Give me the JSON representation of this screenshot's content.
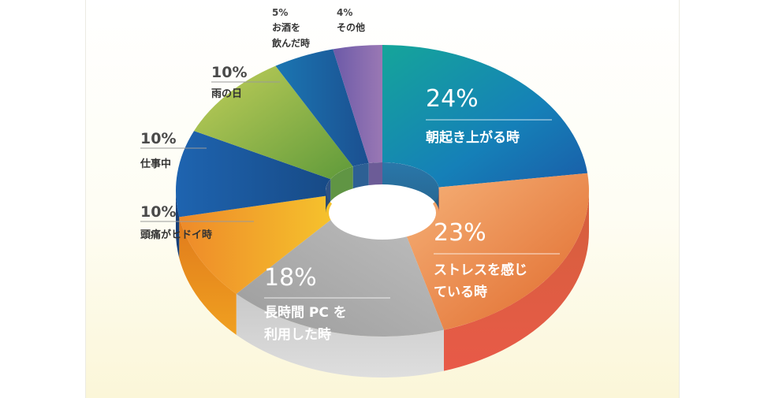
{
  "chart_data": {
    "type": "pie",
    "title": "",
    "slices": [
      {
        "label": "朝起き上がる時",
        "value": 24,
        "percent": "24%",
        "color": "#1583b8"
      },
      {
        "label": "ストレスを感じている時",
        "label_lines": [
          "ストレスを感じ",
          "ている時"
        ],
        "value": 23,
        "percent": "23%",
        "color": "#eb8a4a"
      },
      {
        "label": "長時間 PC を利用した時",
        "label_lines": [
          "長時間 PC を",
          "利用した時"
        ],
        "value": 18,
        "percent": "18%",
        "color": "#b4b4b4"
      },
      {
        "label": "頭痛がヒドイ時",
        "value": 10,
        "percent": "10%",
        "color": "#f2a226"
      },
      {
        "label": "仕事中",
        "value": 10,
        "percent": "10%",
        "color": "#1d5aa0"
      },
      {
        "label": "雨の日",
        "value": 10,
        "percent": "10%",
        "color": "#8fb33a"
      },
      {
        "label": "お酒を飲んだ時",
        "label_lines": [
          "お酒を",
          "飲んだ時"
        ],
        "value": 5,
        "percent": "5%",
        "color": "#1a6aa8"
      },
      {
        "label": "その他",
        "value": 4,
        "percent": "4%",
        "color": "#7f66a8"
      }
    ]
  }
}
